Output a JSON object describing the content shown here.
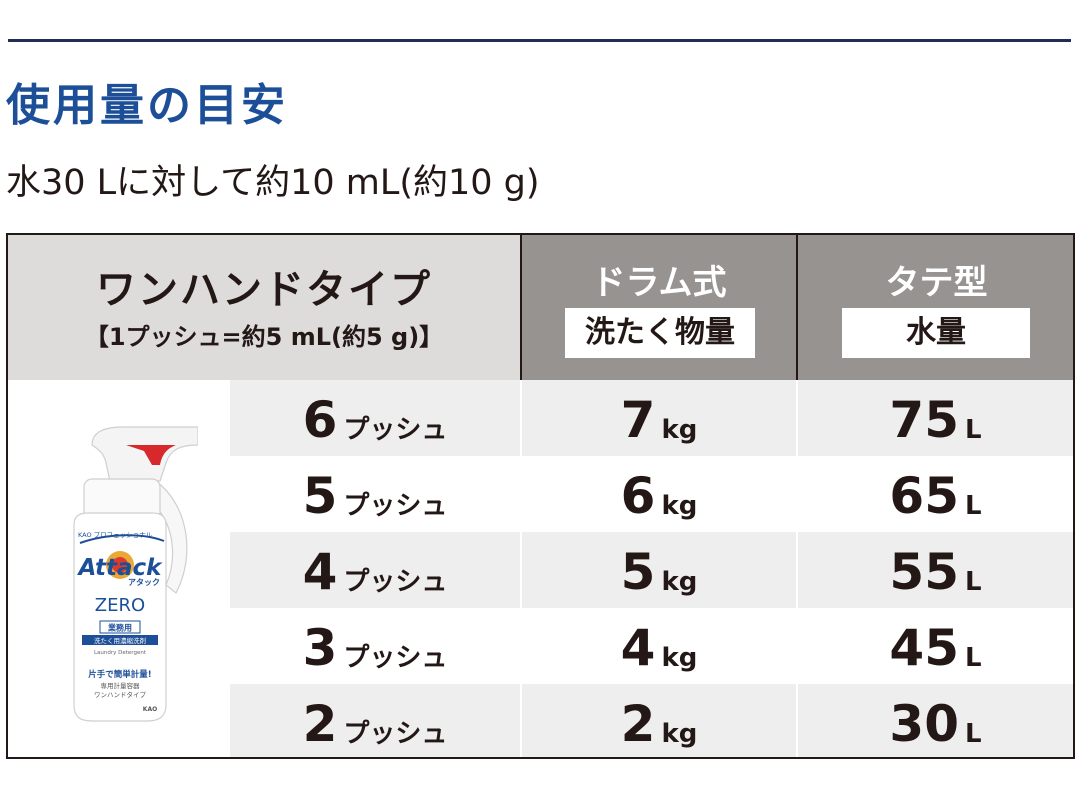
{
  "heading": {
    "title": "使用量の目安",
    "subtitle": "水30 Lに対して約10 mL(約10 g)"
  },
  "table": {
    "col1": {
      "title": "ワンハンドタイプ",
      "sub": "【1プッシュ=約5 mL(約5 g)】"
    },
    "col2": {
      "title": "ドラム式",
      "box": "洗たく物量"
    },
    "col3": {
      "title": "タテ型",
      "box": "水量"
    },
    "rows": [
      {
        "push": "6",
        "push_unit": "プッシュ",
        "kg": "7",
        "kg_unit": "kg",
        "water": "75",
        "water_unit": "L"
      },
      {
        "push": "5",
        "push_unit": "プッシュ",
        "kg": "6",
        "kg_unit": "kg",
        "water": "65",
        "water_unit": "L"
      },
      {
        "push": "4",
        "push_unit": "プッシュ",
        "kg": "5",
        "kg_unit": "kg",
        "water": "55",
        "water_unit": "L"
      },
      {
        "push": "3",
        "push_unit": "プッシュ",
        "kg": "4",
        "kg_unit": "kg",
        "water": "45",
        "water_unit": "L"
      },
      {
        "push": "2",
        "push_unit": "プッシュ",
        "kg": "2",
        "kg_unit": "kg",
        "water": "30",
        "water_unit": "L"
      }
    ]
  },
  "product": {
    "brand_small": "KAO プロフェッショナル",
    "brand": "Attack",
    "brand_kana": "アタック",
    "line": "ZERO",
    "label_box": "業務用",
    "label_strip": "洗たく用濃縮洗剤",
    "label_en": "Laundry Detergent",
    "tagline": "片手で簡単計量!",
    "desc1": "専用計量容器",
    "desc2": "ワンハンドタイプ",
    "maker": "KAO",
    "colors": {
      "body": "#ffffff",
      "trigger": "#d7282b",
      "brand": "#1d4f99"
    }
  },
  "colors": {
    "title": "#1d4f99",
    "rule": "#1f2d59",
    "header_gray": "#979390",
    "header_light": "#dedcdb",
    "row_shade": "#efeeee"
  }
}
